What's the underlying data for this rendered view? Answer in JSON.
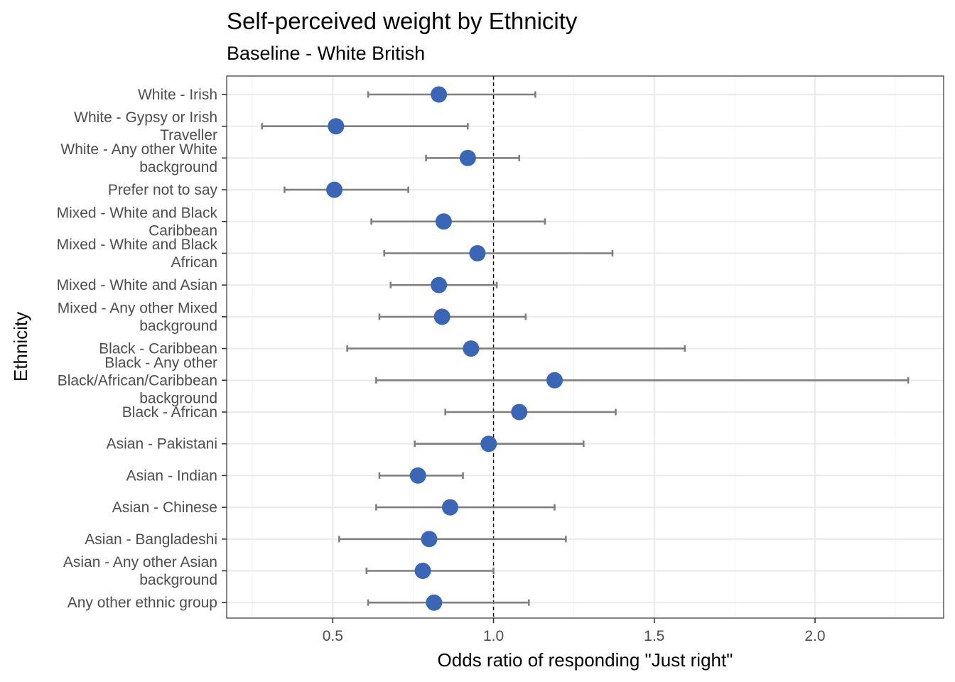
{
  "chart_data": {
    "type": "scatter",
    "title": "Self-perceived weight by Ethnicity",
    "subtitle": "Baseline - White British",
    "xlabel": "Odds ratio of responding \"Just right\"",
    "ylabel": "Ethnicity",
    "xlim": [
      0.17,
      2.4
    ],
    "xticks": [
      0.5,
      1.0,
      1.5,
      2.0
    ],
    "xtick_labels": [
      "0.5",
      "1.0",
      "1.5",
      "2.0"
    ],
    "reference_line": 1.0,
    "grid": true,
    "legend": "none",
    "point_color": "#3A66B5",
    "errorbar_color": "#7F7F7F",
    "categories": [
      {
        "name": "White - Irish",
        "lines": [
          "White - Irish"
        ],
        "estimate": 0.83,
        "lower": 0.61,
        "upper": 1.13
      },
      {
        "name": "White - Gypsy or Irish Traveller",
        "lines": [
          "White - Gypsy or Irish",
          "Traveller"
        ],
        "estimate": 0.51,
        "lower": 0.28,
        "upper": 0.92
      },
      {
        "name": "White - Any other White background",
        "lines": [
          "White - Any other White",
          "background"
        ],
        "estimate": 0.92,
        "lower": 0.79,
        "upper": 1.08
      },
      {
        "name": "Prefer not to say",
        "lines": [
          "Prefer not to say"
        ],
        "estimate": 0.505,
        "lower": 0.35,
        "upper": 0.735
      },
      {
        "name": "Mixed - White and Black Caribbean",
        "lines": [
          "Mixed - White and Black",
          "Caribbean"
        ],
        "estimate": 0.845,
        "lower": 0.62,
        "upper": 1.16
      },
      {
        "name": "Mixed - White and Black African",
        "lines": [
          "Mixed - White and Black",
          "African"
        ],
        "estimate": 0.95,
        "lower": 0.66,
        "upper": 1.37
      },
      {
        "name": "Mixed - White and Asian",
        "lines": [
          "Mixed - White and Asian"
        ],
        "estimate": 0.83,
        "lower": 0.68,
        "upper": 1.01
      },
      {
        "name": "Mixed - Any other Mixed background",
        "lines": [
          "Mixed - Any other Mixed",
          "background"
        ],
        "estimate": 0.84,
        "lower": 0.645,
        "upper": 1.1
      },
      {
        "name": "Black - Caribbean",
        "lines": [
          "Black - Caribbean"
        ],
        "estimate": 0.93,
        "lower": 0.545,
        "upper": 1.595
      },
      {
        "name": "Black - Any other Black/African/Caribbean background",
        "lines": [
          "Black - Any other",
          "Black/African/Caribbean",
          "background"
        ],
        "estimate": 1.19,
        "lower": 0.635,
        "upper": 2.29
      },
      {
        "name": "Black - African",
        "lines": [
          "Black - African"
        ],
        "estimate": 1.08,
        "lower": 0.85,
        "upper": 1.38
      },
      {
        "name": "Asian - Pakistani",
        "lines": [
          "Asian - Pakistani"
        ],
        "estimate": 0.985,
        "lower": 0.755,
        "upper": 1.28
      },
      {
        "name": "Asian - Indian",
        "lines": [
          "Asian - Indian"
        ],
        "estimate": 0.765,
        "lower": 0.645,
        "upper": 0.905
      },
      {
        "name": "Asian - Chinese",
        "lines": [
          "Asian - Chinese"
        ],
        "estimate": 0.865,
        "lower": 0.635,
        "upper": 1.19
      },
      {
        "name": "Asian - Bangladeshi",
        "lines": [
          "Asian - Bangladeshi"
        ],
        "estimate": 0.8,
        "lower": 0.52,
        "upper": 1.225
      },
      {
        "name": "Asian - Any other Asian background",
        "lines": [
          "Asian - Any other Asian",
          "background"
        ],
        "estimate": 0.78,
        "lower": 0.605,
        "upper": 1.0
      },
      {
        "name": "Any other ethnic group",
        "lines": [
          "Any other ethnic group"
        ],
        "estimate": 0.815,
        "lower": 0.61,
        "upper": 1.11
      }
    ]
  }
}
